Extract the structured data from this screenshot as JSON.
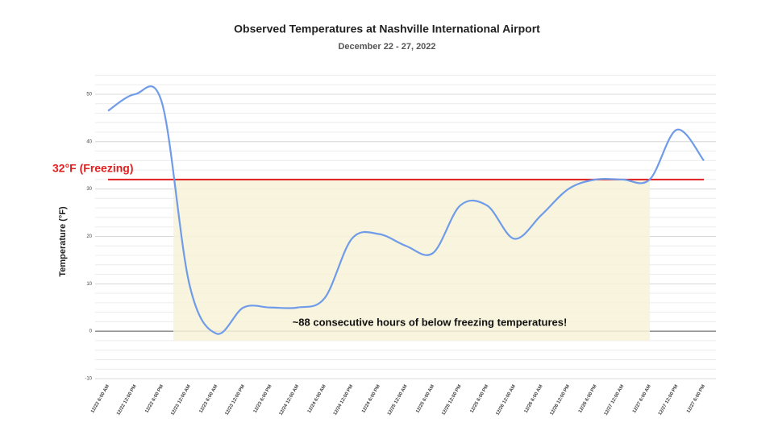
{
  "chart_data": {
    "type": "line",
    "title": "Observed Temperatures at Nashville International Airport",
    "subtitle": "December 22 - 27, 2022",
    "y_label": "Temperature (°F)",
    "categories": [
      "12/22 6:00 AM",
      "12/22 12:00 PM",
      "12/22 6:00 PM",
      "12/23 12:00 AM",
      "12/23 6:00 AM",
      "12/23 12:00 PM",
      "12/23 6:00 PM",
      "12/24 12:00 AM",
      "12/24 6:00 AM",
      "12/24 12:00 PM",
      "12/24 6:00 PM",
      "12/25 12:00 AM",
      "12/25 6:00 AM",
      "12/25 12:00 PM",
      "12/25 6:00 PM",
      "12/26 12:00 AM",
      "12/26 6:00 AM",
      "12/26 12:00 PM",
      "12/26 6:00 PM",
      "12/27 12:00 AM",
      "12/27 6:00 AM",
      "12/27 12:00 PM",
      "12/27 6:00 PM"
    ],
    "values": [
      46.5,
      50,
      48,
      10,
      -0.5,
      5,
      5,
      5,
      7,
      19.5,
      20.5,
      18,
      16.5,
      26.5,
      26.5,
      19.5,
      24.5,
      30,
      32,
      32,
      32,
      42.5,
      36
    ],
    "color": "#6f9be8",
    "ylim": [
      -10,
      54
    ],
    "yticks": [
      -10,
      0,
      10,
      20,
      30,
      40,
      50
    ],
    "minor_grid_step": 2,
    "grid": true,
    "freezing": {
      "value": 32,
      "label": "32°F (Freezing)",
      "color": "#e02020"
    },
    "shade_ylim": [
      -2,
      32
    ],
    "annotation": "~88 consecutive hours of below freezing temperatures!"
  }
}
